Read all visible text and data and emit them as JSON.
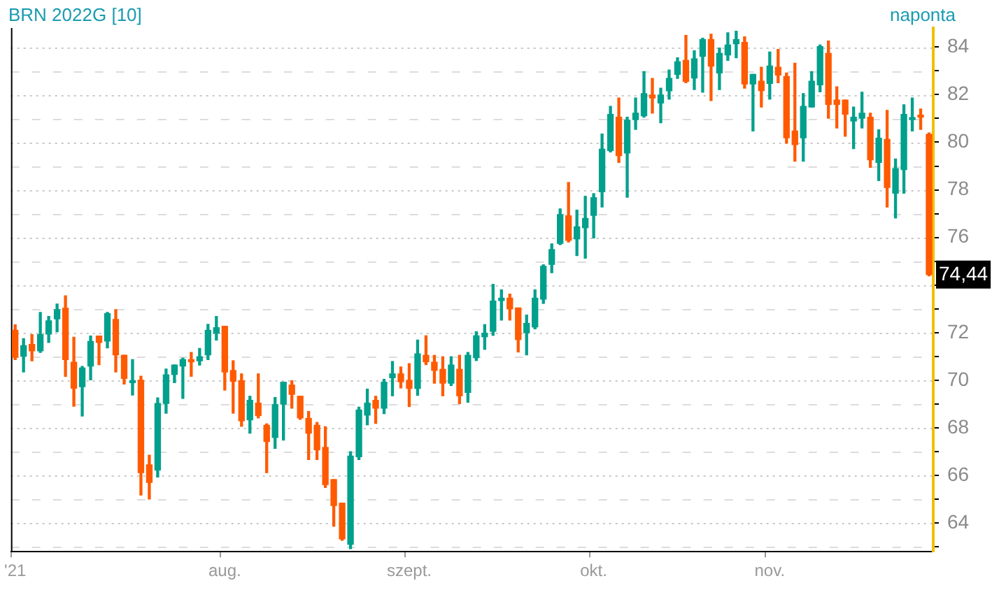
{
  "chart_data": {
    "type": "candlestick",
    "title": "BRN 2022G [10]",
    "subtitle": "naponta",
    "categories": [
      "'21",
      null,
      null,
      null,
      null,
      null,
      null,
      null,
      null,
      null,
      null,
      null,
      null,
      null,
      null,
      null,
      null,
      null,
      null,
      null,
      null,
      null,
      null,
      null,
      null,
      "aug.",
      null,
      null,
      null,
      null,
      null,
      null,
      null,
      null,
      null,
      null,
      null,
      null,
      null,
      null,
      null,
      null,
      null,
      null,
      null,
      null,
      null,
      "szept.",
      null,
      null,
      null,
      null,
      null,
      null,
      null,
      null,
      null,
      null,
      null,
      null,
      null,
      null,
      null,
      null,
      null,
      null,
      null,
      null,
      null,
      "okt.",
      null,
      null,
      null,
      null,
      null,
      null,
      null,
      null,
      null,
      null,
      null,
      null,
      null,
      null,
      null,
      null,
      null,
      null,
      null,
      null,
      "nov.",
      null,
      null,
      null,
      null,
      null,
      null,
      null,
      null,
      null,
      null,
      null,
      null,
      null,
      null,
      null,
      null,
      null,
      null,
      null
    ],
    "ohlc": [
      [
        72.1,
        72.33,
        70.87,
        70.97
      ],
      [
        71.01,
        71.75,
        70.35,
        71.46
      ],
      [
        71.51,
        71.92,
        70.82,
        71.24
      ],
      [
        71.24,
        72.85,
        71.17,
        71.92
      ],
      [
        71.94,
        72.68,
        71.59,
        72.5
      ],
      [
        72.58,
        73.2,
        72.04,
        72.97
      ],
      [
        73.03,
        73.55,
        70.17,
        70.87
      ],
      [
        70.76,
        71.81,
        68.91,
        69.67
      ],
      [
        69.73,
        70.58,
        68.5,
        70.52
      ],
      [
        70.6,
        71.86,
        70.02,
        71.63
      ],
      [
        71.86,
        71.86,
        70.66,
        71.59
      ],
      [
        71.65,
        72.85,
        71.36,
        72.8
      ],
      [
        72.56,
        72.97,
        70.35,
        71.07
      ],
      [
        71.05,
        71.05,
        69.84,
        70.08
      ],
      [
        69.9,
        70.87,
        69.38,
        69.94
      ],
      [
        70.0,
        70.17,
        65.18,
        66.12
      ],
      [
        66.45,
        66.85,
        65.01,
        65.71
      ],
      [
        66.23,
        69.26,
        65.94,
        69.03
      ],
      [
        69.03,
        70.47,
        68.62,
        70.23
      ],
      [
        70.25,
        70.64,
        69.9,
        70.64
      ],
      [
        70.6,
        70.93,
        69.24,
        70.87
      ],
      [
        70.82,
        71.17,
        70.17,
        70.78
      ],
      [
        70.82,
        71.34,
        70.64,
        70.99
      ],
      [
        71.07,
        72.35,
        70.87,
        72.1
      ],
      [
        71.98,
        72.68,
        71.69,
        72.21
      ],
      [
        72.27,
        72.27,
        69.59,
        70.35
      ],
      [
        70.41,
        70.82,
        68.62,
        69.96
      ],
      [
        69.98,
        70.27,
        68.07,
        68.3
      ],
      [
        68.34,
        69.33,
        67.78,
        69.16
      ],
      [
        69.04,
        70.27,
        68.42,
        68.52
      ],
      [
        68.11,
        68.17,
        66.12,
        67.43
      ],
      [
        67.6,
        69.28,
        67.14,
        68.98
      ],
      [
        69.0,
        69.92,
        67.49,
        69.92
      ],
      [
        69.8,
        69.98,
        68.83,
        69.41
      ],
      [
        69.33,
        69.33,
        68.36,
        68.42
      ],
      [
        68.4,
        68.69,
        66.67,
        67.78
      ],
      [
        68.11,
        68.23,
        66.67,
        67.08
      ],
      [
        67.18,
        68.05,
        65.5,
        65.62
      ],
      [
        65.83,
        65.83,
        63.87,
        64.74
      ],
      [
        64.84,
        64.84,
        63.28,
        63.34
      ],
      [
        63.11,
        67.0,
        62.93,
        66.82
      ],
      [
        66.79,
        68.87,
        66.67,
        68.75
      ],
      [
        68.54,
        69.63,
        68.13,
        69.04
      ],
      [
        69.16,
        69.33,
        68.19,
        68.83
      ],
      [
        68.83,
        70.04,
        68.6,
        69.92
      ],
      [
        70.11,
        70.79,
        69.35,
        70.27
      ],
      [
        70.27,
        70.56,
        69.68,
        69.94
      ],
      [
        70.0,
        70.7,
        68.9,
        69.66
      ],
      [
        69.66,
        71.69,
        69.37,
        71.11
      ],
      [
        71.05,
        71.87,
        70.66,
        70.78
      ],
      [
        70.76,
        71.05,
        69.88,
        70.42
      ],
      [
        70.46,
        70.99,
        69.35,
        69.88
      ],
      [
        69.88,
        70.99,
        69.78,
        70.64
      ],
      [
        70.46,
        71.05,
        69.02,
        69.35
      ],
      [
        69.49,
        71.17,
        69.08,
        71.05
      ],
      [
        70.95,
        72.04,
        70.83,
        71.87
      ],
      [
        71.83,
        72.34,
        71.3,
        71.98
      ],
      [
        72.06,
        74.03,
        71.89,
        73.33
      ],
      [
        73.35,
        73.8,
        72.53,
        73.45
      ],
      [
        73.45,
        73.62,
        72.53,
        73.0
      ],
      [
        73.04,
        73.04,
        71.19,
        71.71
      ],
      [
        72.0,
        72.74,
        71.07,
        72.39
      ],
      [
        72.24,
        73.8,
        72.16,
        73.45
      ],
      [
        73.41,
        74.85,
        73.23,
        74.79
      ],
      [
        74.87,
        75.73,
        74.52,
        75.49
      ],
      [
        75.75,
        77.2,
        75.7,
        76.96
      ],
      [
        76.91,
        78.31,
        75.81,
        75.88
      ],
      [
        75.94,
        77.15,
        75.24,
        76.45
      ],
      [
        76.41,
        77.73,
        75.13,
        76.8
      ],
      [
        76.93,
        77.84,
        75.98,
        77.67
      ],
      [
        77.92,
        80.35,
        77.28,
        79.71
      ],
      [
        79.65,
        81.51,
        79.59,
        81.17
      ],
      [
        81.05,
        81.86,
        79.15,
        79.44
      ],
      [
        79.55,
        81.05,
        77.69,
        80.93
      ],
      [
        80.95,
        81.86,
        80.54,
        81.22
      ],
      [
        81.11,
        82.97,
        81.05,
        82.04
      ],
      [
        81.98,
        82.68,
        81.22,
        81.86
      ],
      [
        81.65,
        82.27,
        80.82,
        81.98
      ],
      [
        82.16,
        83.03,
        81.81,
        82.68
      ],
      [
        82.85,
        83.55,
        82.68,
        83.38
      ],
      [
        83.44,
        84.49,
        82.5,
        82.56
      ],
      [
        82.7,
        83.84,
        82.21,
        83.5
      ],
      [
        83.61,
        84.37,
        82.1,
        84.31
      ],
      [
        84.31,
        84.54,
        81.75,
        83.2
      ],
      [
        82.91,
        83.96,
        82.21,
        83.73
      ],
      [
        83.67,
        84.6,
        83.44,
        84.08
      ],
      [
        84.14,
        84.66,
        83.55,
        84.31
      ],
      [
        84.19,
        84.43,
        82.27,
        82.45
      ],
      [
        82.45,
        82.85,
        80.47,
        82.85
      ],
      [
        82.56,
        83.15,
        81.48,
        82.17
      ],
      [
        82.47,
        83.79,
        81.81,
        83.2
      ],
      [
        83.15,
        83.9,
        82.5,
        82.82
      ],
      [
        82.76,
        82.91,
        79.96,
        80.19
      ],
      [
        80.47,
        83.32,
        79.2,
        79.9
      ],
      [
        80.19,
        82.04,
        79.2,
        81.51
      ],
      [
        81.48,
        82.97,
        81.48,
        82.56
      ],
      [
        82.41,
        84.08,
        82.12,
        84.02
      ],
      [
        83.73,
        84.25,
        81.01,
        81.59
      ],
      [
        81.77,
        82.33,
        80.6,
        81.59
      ],
      [
        81.77,
        81.77,
        80.25,
        81.18
      ],
      [
        80.89,
        81.48,
        79.73,
        81.05
      ],
      [
        81.01,
        82.1,
        80.6,
        81.22
      ],
      [
        81.05,
        81.22,
        78.95,
        79.26
      ],
      [
        79.15,
        80.52,
        78.39,
        80.17
      ],
      [
        80.12,
        81.34,
        77.28,
        78.1
      ],
      [
        77.86,
        79.3,
        76.82,
        78.89
      ],
      [
        78.85,
        81.57,
        77.86,
        81.17
      ],
      [
        80.95,
        81.86,
        80.47,
        80.99
      ],
      [
        81.09,
        81.4,
        80.54,
        81.05
      ],
      [
        80.33,
        80.39,
        74.39,
        74.44
      ]
    ],
    "colors": [
      "#ff5a00",
      "#00a08c",
      "#ff5a00",
      "#00a08c",
      "#00a08c",
      "#00a08c",
      "#ff5a00",
      "#ff5a00",
      "#00a08c",
      "#00a08c",
      "#ff5a00",
      "#00a08c",
      "#ff5a00",
      "#ff5a00",
      "#00a08c",
      "#ff5a00",
      "#ff5a00",
      "#00a08c",
      "#00a08c",
      "#00a08c",
      "#00a08c",
      "#ff5a00",
      "#00a08c",
      "#00a08c",
      "#00a08c",
      "#ff5a00",
      "#ff5a00",
      "#ff5a00",
      "#00a08c",
      "#ff5a00",
      "#ff5a00",
      "#00a08c",
      "#00a08c",
      "#ff5a00",
      "#ff5a00",
      "#ff5a00",
      "#ff5a00",
      "#ff5a00",
      "#ff5a00",
      "#ff5a00",
      "#00a08c",
      "#00a08c",
      "#00a08c",
      "#ff5a00",
      "#00a08c",
      "#00a08c",
      "#ff5a00",
      "#ff5a00",
      "#00a08c",
      "#ff5a00",
      "#ff5a00",
      "#ff5a00",
      "#00a08c",
      "#ff5a00",
      "#00a08c",
      "#00a08c",
      "#00a08c",
      "#00a08c",
      "#00a08c",
      "#ff5a00",
      "#ff5a00",
      "#00a08c",
      "#00a08c",
      "#00a08c",
      "#00a08c",
      "#00a08c",
      "#ff5a00",
      "#00a08c",
      "#00a08c",
      "#00a08c",
      "#00a08c",
      "#00a08c",
      "#ff5a00",
      "#00a08c",
      "#00a08c",
      "#00a08c",
      "#ff5a00",
      "#00a08c",
      "#00a08c",
      "#00a08c",
      "#ff5a00",
      "#00a08c",
      "#00a08c",
      "#ff5a00",
      "#00a08c",
      "#00a08c",
      "#00a08c",
      "#ff5a00",
      "#00a08c",
      "#ff5a00",
      "#00a08c",
      "#ff5a00",
      "#ff5a00",
      "#ff5a00",
      "#00a08c",
      "#00a08c",
      "#00a08c",
      "#ff5a00",
      "#ff5a00",
      "#ff5a00",
      "#00a08c",
      "#00a08c",
      "#ff5a00",
      "#00a08c",
      "#ff5a00",
      "#00a08c",
      "#00a08c",
      "#00a08c",
      "#ff5a00",
      "#ff5a00"
    ],
    "ylim": [
      62.8,
      84.8
    ],
    "yticks": [
      {
        "value": 63,
        "label": null
      },
      64,
      {
        "value": 65,
        "label": null
      },
      66,
      {
        "value": 67,
        "label": null
      },
      68,
      {
        "value": 69,
        "label": null
      },
      70,
      {
        "value": 71,
        "label": null
      },
      72,
      {
        "value": 73,
        "label": null
      },
      {
        "value": 74,
        "label": null
      },
      {
        "value": 75,
        "label": null
      },
      76,
      {
        "value": 77,
        "label": null
      },
      78,
      {
        "value": 79,
        "label": null
      },
      80,
      {
        "value": 81,
        "label": null
      },
      82,
      {
        "value": 83,
        "label": null
      },
      84
    ],
    "annotations": [
      {
        "text": "74,44",
        "y": 74.44
      }
    ],
    "grid": "y",
    "legend": false
  }
}
